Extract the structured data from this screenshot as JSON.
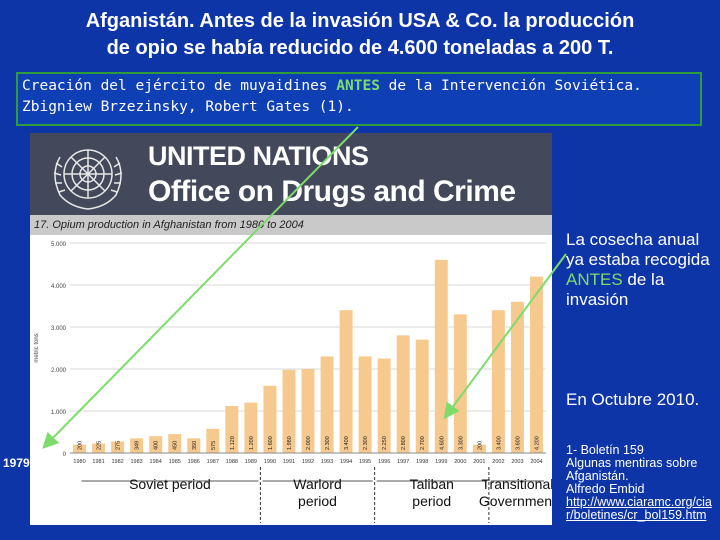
{
  "title_line1": "Afganistán. Antes de la invasión USA & Co. la producción",
  "title_line2": "de opio se había reducido de 4.600 toneladas a 200 T.",
  "note": {
    "line1_a": "Creación del ejército de muyaidines ",
    "line1_accent": "ANTES",
    "line1_b": " de la Intervención Soviética.",
    "line2": "Zbigniew Brzezinsky, Robert Gates (1)."
  },
  "un_header": {
    "name": "UNITED NATIONS",
    "office": "Office on Drugs and Crime"
  },
  "figure_title": "17. Opium production in Afghanistan from 1980 to 2004",
  "colors": {
    "bar": "#f6c98f",
    "accent_green": "#7ddc6b",
    "background": "#0d35a8"
  },
  "chart_data": {
    "type": "bar",
    "title": "17. Opium production in Afghanistan from 1980 to 2004",
    "ylabel": "metric tons",
    "ylim": [
      0,
      5000
    ],
    "yticks": [
      "0",
      "1.000",
      "2.000",
      "3.000",
      "4.000",
      "5.000"
    ],
    "categories": [
      "1980",
      "1981",
      "1982",
      "1983",
      "1984",
      "1985",
      "1986",
      "1987",
      "1988",
      "1989",
      "1990",
      "1991",
      "1992",
      "1993",
      "1994",
      "1995",
      "1996",
      "1997",
      "1998",
      "1999",
      "2000",
      "2001",
      "2002",
      "2003",
      "2004"
    ],
    "values": [
      200,
      225,
      275,
      349,
      400,
      450,
      350,
      575,
      1120,
      1200,
      1600,
      1980,
      2000,
      2300,
      3400,
      2300,
      2250,
      2800,
      2700,
      4600,
      3300,
      200,
      3400,
      3600,
      4200
    ],
    "value_labels": [
      "200",
      "225",
      "275",
      "349",
      "400",
      "450",
      "350",
      "575",
      "1.120",
      "1.200",
      "1.600",
      "1.980",
      "2.000",
      "2.300",
      "3.400",
      "2.300",
      "2.250",
      "2.800",
      "2.700",
      "4.600",
      "3.300",
      "200",
      "3.400",
      "3.600",
      "4.200"
    ],
    "periods": [
      "Soviet period",
      "Warlord period",
      "Taliban period",
      "Transitional Government"
    ]
  },
  "right_text": {
    "part1": "La cosecha anual ya estaba recogida ",
    "accent": "ANTES",
    "part2": " de la invasión"
  },
  "octubre": "En Octubre 2010.",
  "reference": {
    "line1": "1- Boletín 159",
    "line2": "Algunas mentiras sobre Afganistán.",
    "line3": "Alfredo Embid",
    "link": "http://www.ciaramc.org/ciar/boletines/cr_bol159.htm"
  },
  "year_label": "1979"
}
